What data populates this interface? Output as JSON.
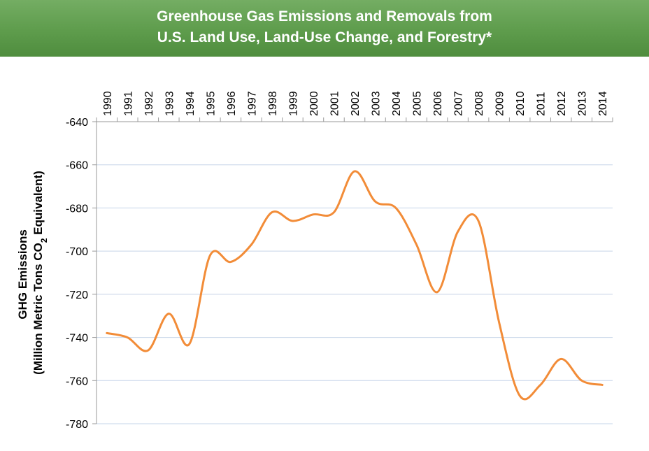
{
  "title": {
    "line1": "Greenhouse Gas Emissions and Removals from",
    "line2": "U.S. Land Use, Land-Use Change, and Forestry*"
  },
  "colors": {
    "banner": "#5e9c4c",
    "line": "#f28c38",
    "grid": "#c6d4e8"
  },
  "chart_data": {
    "type": "line",
    "title": "Greenhouse Gas Emissions and Removals from U.S. Land Use, Land-Use Change, and Forestry*",
    "ylabel_line1": "GHG Emissions",
    "ylabel_line2_pre": "(Million Metric Tons CO",
    "ylabel_line2_sub": "2",
    "ylabel_line2_post": " Equivalent)",
    "xlabel": "",
    "x_axis_position": "top",
    "y_reversed": true,
    "ylim": [
      -640,
      -780
    ],
    "yticks": [
      -640,
      -660,
      -680,
      -700,
      -720,
      -740,
      -760,
      -780
    ],
    "grid": true,
    "categories": [
      "1990",
      "1991",
      "1992",
      "1993",
      "1994",
      "1995",
      "1996",
      "1997",
      "1998",
      "1999",
      "2000",
      "2001",
      "2002",
      "2003",
      "2004",
      "2005",
      "2006",
      "2007",
      "2008",
      "2009",
      "2010",
      "2011",
      "2012",
      "2013",
      "2014"
    ],
    "series": [
      {
        "values": [
          -738,
          -740,
          -746,
          -729,
          -743,
          -702,
          -705,
          -697,
          -682,
          -686,
          -683,
          -682,
          -663,
          -677,
          -680,
          -697,
          -719,
          -691,
          -686,
          -733,
          -767,
          -762,
          -750,
          -760,
          -762
        ]
      }
    ]
  }
}
